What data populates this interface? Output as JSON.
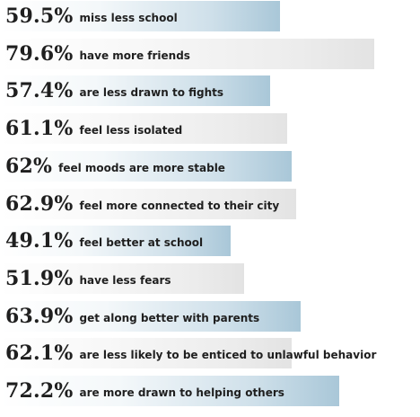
{
  "chart_data": {
    "type": "bar",
    "orientation": "horizontal",
    "title": "",
    "xlabel": "",
    "ylabel": "",
    "xlim": [
      0,
      100
    ],
    "grid": false,
    "legend": "none",
    "colors": {
      "blue": "#a9c7d8",
      "gray": "#e3e3e3",
      "text": "#1f1f1f"
    },
    "bars": [
      {
        "pct_label": "59.5%",
        "value": 59.5,
        "text": "miss less school",
        "style": "blue"
      },
      {
        "pct_label": "79.6%",
        "value": 79.6,
        "text": "have more friends",
        "style": "gray"
      },
      {
        "pct_label": "57.4%",
        "value": 57.4,
        "text": "are less drawn to fights",
        "style": "blue"
      },
      {
        "pct_label": "61.1%",
        "value": 61.1,
        "text": "feel less isolated",
        "style": "gray"
      },
      {
        "pct_label": "62%",
        "value": 62.0,
        "text": "feel moods are more stable",
        "style": "blue"
      },
      {
        "pct_label": "62.9%",
        "value": 62.9,
        "text": "feel more connected to their city",
        "style": "gray"
      },
      {
        "pct_label": "49.1%",
        "value": 49.1,
        "text": "feel better at school",
        "style": "blue"
      },
      {
        "pct_label": "51.9%",
        "value": 51.9,
        "text": "have less fears",
        "style": "gray"
      },
      {
        "pct_label": "63.9%",
        "value": 63.9,
        "text": "get along better with parents",
        "style": "blue"
      },
      {
        "pct_label": "62.1%",
        "value": 62.1,
        "text": "are less likely to be enticed to unlawful behavior",
        "style": "gray"
      },
      {
        "pct_label": "72.2%",
        "value": 72.2,
        "text": "are more drawn to helping others",
        "style": "blue"
      }
    ]
  }
}
